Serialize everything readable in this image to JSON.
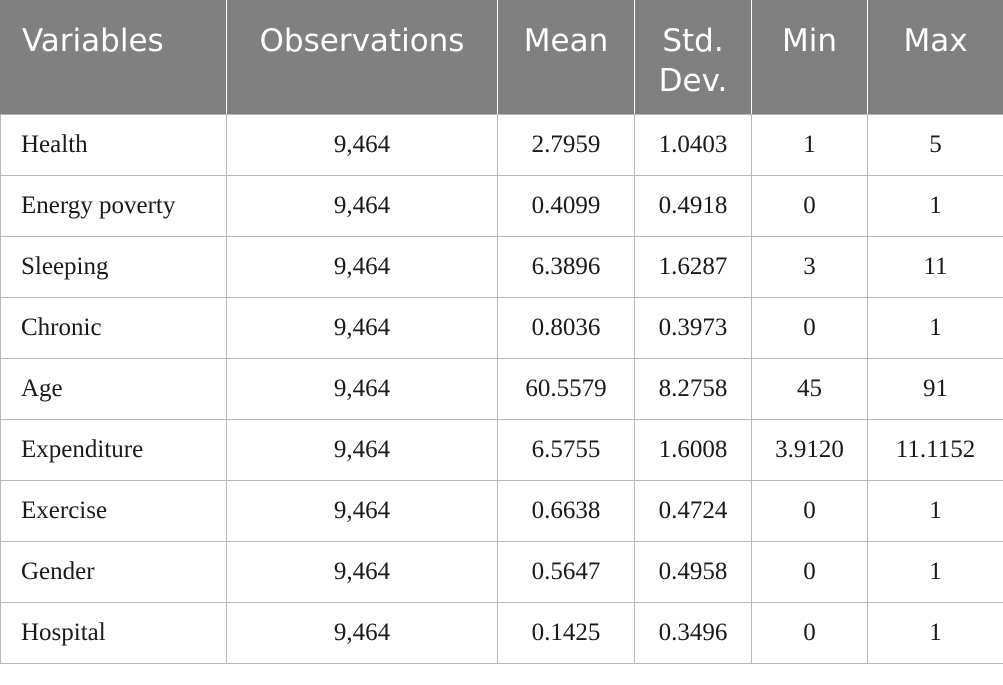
{
  "table": {
    "headers": [
      "Variables",
      "Observations",
      "Mean",
      "Std.\nDev.",
      "Min",
      "Max"
    ],
    "rows": [
      [
        "Health",
        "9,464",
        "2.7959",
        "1.0403",
        "1",
        "5"
      ],
      [
        "Energy poverty",
        "9,464",
        "0.4099",
        "0.4918",
        "0",
        "1"
      ],
      [
        "Sleeping",
        "9,464",
        "6.3896",
        "1.6287",
        "3",
        "11"
      ],
      [
        "Chronic",
        "9,464",
        "0.8036",
        "0.3973",
        "0",
        "1"
      ],
      [
        "Age",
        "9,464",
        "60.5579",
        "8.2758",
        "45",
        "91"
      ],
      [
        "Expenditure",
        "9,464",
        "6.5755",
        "1.6008",
        "3.9120",
        "11.1152"
      ],
      [
        "Exercise",
        "9,464",
        "0.6638",
        "0.4724",
        "0",
        "1"
      ],
      [
        "Gender",
        "9,464",
        "0.5647",
        "0.4958",
        "0",
        "1"
      ],
      [
        "Hospital",
        "9,464",
        "0.1425",
        "0.3496",
        "0",
        "1"
      ]
    ]
  },
  "colors": {
    "header_bg": "#808080",
    "header_text": "#ffffff",
    "grid": "#b8b8b8"
  }
}
